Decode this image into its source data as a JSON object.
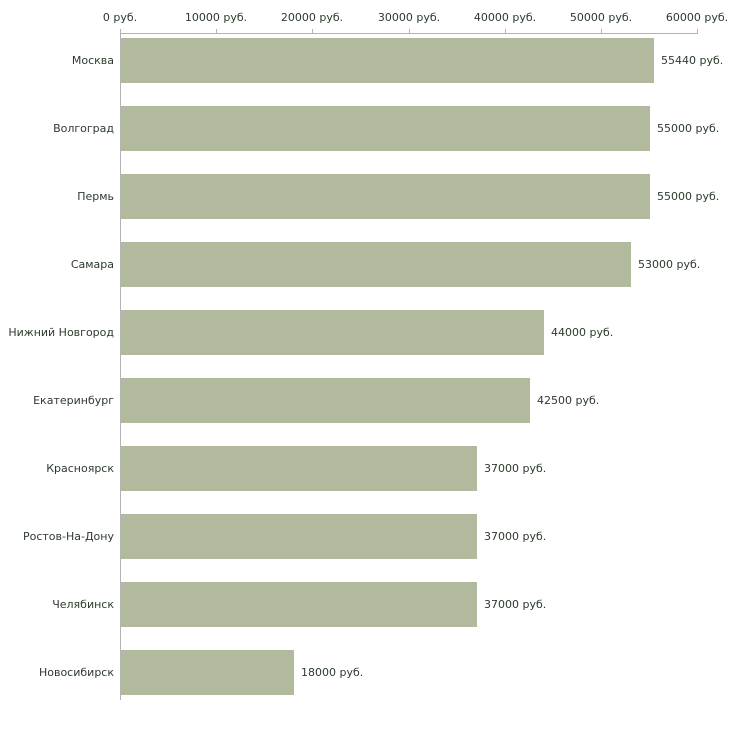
{
  "chart_data": {
    "type": "bar",
    "orientation": "horizontal",
    "title": "",
    "categories": [
      "Москва",
      "Волгоград",
      "Пермь",
      "Самара",
      "Нижний Новгород",
      "Екатеринбург",
      "Красноярск",
      "Ростов-На-Дону",
      "Челябинск",
      "Новосибирск"
    ],
    "values": [
      55440,
      55000,
      55000,
      53000,
      44000,
      42500,
      37000,
      37000,
      37000,
      18000
    ],
    "value_labels": [
      "55440 руб.",
      "55000 руб.",
      "55000 руб.",
      "53000 руб.",
      "44000 руб.",
      "42500 руб.",
      "37000 руб.",
      "37000 руб.",
      "37000 руб.",
      "18000 руб."
    ],
    "x_ticks": [
      0,
      10000,
      20000,
      30000,
      40000,
      50000,
      60000
    ],
    "x_tick_labels": [
      "0 руб.",
      "10000 руб.",
      "20000 руб.",
      "30000 руб.",
      "40000 руб.",
      "50000 руб.",
      "60000 руб."
    ],
    "xlim": [
      0,
      60000
    ],
    "unit": "руб.",
    "grid": false,
    "legend": "none",
    "bar_color": "#b2ba9d",
    "text_color": "#2d3b2d",
    "axis_color": "#b3b3b3"
  }
}
